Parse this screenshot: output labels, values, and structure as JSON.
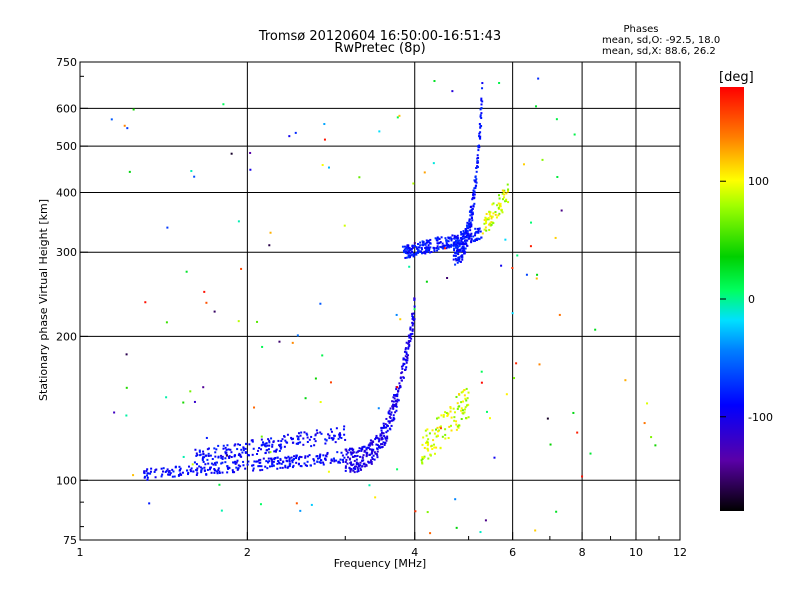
{
  "chart_data": {
    "type": "scatter",
    "title": "Tromsø 20120604 16:50:00-16:51:43",
    "subtitle": "RwPretec (8p)",
    "xlabel": "Frequency [MHz]",
    "ylabel": "Stationary phase Virtual Height [km]",
    "x_scale": "log",
    "y_scale": "log",
    "xlim": [
      1,
      12
    ],
    "ylim": [
      75,
      750
    ],
    "x_ticks": [
      1,
      2,
      4,
      6,
      8,
      10,
      12
    ],
    "x_ticklabels": [
      "1",
      "2",
      "4",
      "6",
      "8",
      "10",
      "12"
    ],
    "y_ticks": [
      75,
      100,
      200,
      300,
      400,
      500,
      600,
      750
    ],
    "y_ticklabels": [
      "75",
      "100",
      "200",
      "300",
      "400",
      "500",
      "600",
      "750"
    ],
    "x_gridlines": [
      2,
      4,
      6,
      8,
      10
    ],
    "y_gridlines": [
      100,
      200,
      300,
      400,
      500,
      600
    ],
    "grid": true,
    "info": {
      "heading": "Phases",
      "line1": "mean, sd,O: -92.5, 18.0",
      "line2": "mean, sd,X:  88.6, 26.2"
    },
    "colorbar": {
      "label": "[deg]",
      "range": [
        -180,
        180
      ],
      "ticks": [
        100,
        0,
        -100
      ],
      "ticklabels": [
        "100",
        "0",
        "-100"
      ]
    },
    "traces": [
      {
        "kind": "O-mode E/F1",
        "phase": -100,
        "spread": 12,
        "x_range": [
          1.3,
          3.0
        ],
        "y_range": [
          100,
          115
        ],
        "count": 280
      },
      {
        "kind": "O-mode F1 upper",
        "phase": -100,
        "spread": 12,
        "x_range": [
          1.6,
          3.0
        ],
        "y_range": [
          108,
          130
        ],
        "count": 200
      },
      {
        "kind": "O-mode F cusp",
        "phase": -110,
        "spread": 12,
        "x_range": [
          3.0,
          4.0
        ],
        "y_range": [
          110,
          230
        ],
        "count": 330
      },
      {
        "kind": "O-mode F2",
        "phase": -95,
        "spread": 12,
        "x_range": [
          3.8,
          5.3
        ],
        "y_range": [
          290,
          340
        ],
        "count": 260
      },
      {
        "kind": "O-mode F2 rise",
        "phase": -95,
        "spread": 12,
        "x_range": [
          4.7,
          5.3
        ],
        "y_range": [
          300,
          660
        ],
        "count": 220
      },
      {
        "kind": "X-mode trace",
        "phase": 90,
        "spread": 25,
        "x_range": [
          4.1,
          5.0
        ],
        "y_range": [
          105,
          160
        ],
        "count": 120
      },
      {
        "kind": "X-mode F2",
        "phase": 90,
        "spread": 25,
        "x_range": [
          5.3,
          5.9
        ],
        "y_range": [
          320,
          420
        ],
        "count": 70
      },
      {
        "kind": "scattered noise",
        "phase": 0,
        "spread": 180,
        "x_range": [
          1.1,
          11
        ],
        "y_range": [
          75,
          700
        ],
        "count": 140
      }
    ]
  }
}
